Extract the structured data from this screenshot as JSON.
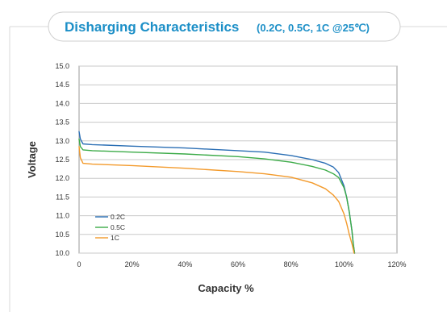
{
  "chart_data": {
    "type": "line",
    "title": "Disharging Characteristics",
    "subtitle": "(0.2C, 0.5C, 1C @25℃)",
    "xlabel": "Capacity %",
    "ylabel": "Voltage",
    "xlim": [
      0,
      120
    ],
    "ylim": [
      10.0,
      15.0
    ],
    "x_ticks": [
      "0",
      "20%",
      "40%",
      "60%",
      "80%",
      "100%",
      "120%"
    ],
    "y_ticks": [
      "15.0",
      "14.5",
      "14.0",
      "13.5",
      "13.0",
      "12.5",
      "12.0",
      "11.5",
      "11.0",
      "10.5",
      "10.0"
    ],
    "grid": "horizontal",
    "legend_position": "bottom-left",
    "series": [
      {
        "name": "0.2C",
        "color": "#2a6eb4",
        "x": [
          0,
          0.5,
          1.5,
          5,
          20,
          40,
          60,
          70,
          80,
          88,
          93,
          96,
          98,
          100,
          101,
          102,
          103,
          103.5,
          104
        ],
        "y": [
          13.25,
          13.05,
          12.92,
          12.9,
          12.86,
          12.81,
          12.74,
          12.7,
          12.61,
          12.5,
          12.4,
          12.3,
          12.15,
          11.8,
          11.5,
          11.1,
          10.6,
          10.25,
          10.0
        ]
      },
      {
        "name": "0.5C",
        "color": "#3cab48",
        "x": [
          0,
          0.5,
          1.5,
          5,
          20,
          40,
          60,
          70,
          80,
          88,
          93,
          96,
          98,
          100,
          101,
          102,
          103,
          103.5,
          104
        ],
        "y": [
          13.05,
          12.85,
          12.76,
          12.74,
          12.7,
          12.65,
          12.58,
          12.52,
          12.43,
          12.32,
          12.22,
          12.12,
          12.02,
          11.75,
          11.5,
          11.1,
          10.6,
          10.25,
          10.0
        ]
      },
      {
        "name": "1C",
        "color": "#f39a2b",
        "x": [
          0,
          0.5,
          1.5,
          5,
          20,
          40,
          60,
          70,
          80,
          88,
          93,
          96,
          98,
          100,
          101,
          102,
          103,
          103.5,
          103.8
        ],
        "y": [
          12.85,
          12.55,
          12.4,
          12.38,
          12.34,
          12.27,
          12.18,
          12.12,
          12.03,
          11.88,
          11.72,
          11.55,
          11.38,
          11.05,
          10.8,
          10.5,
          10.25,
          10.1,
          10.0
        ]
      }
    ]
  }
}
